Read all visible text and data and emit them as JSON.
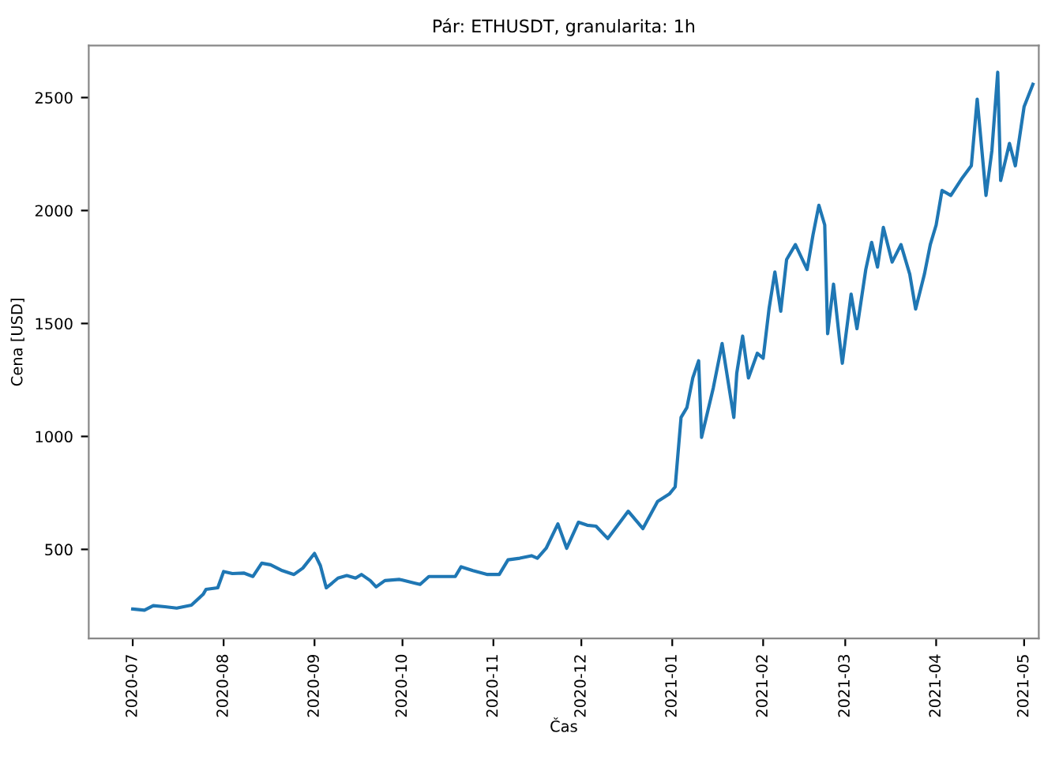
{
  "chart_data": {
    "type": "line",
    "title": "Pár: ETHUSDT, granularita: 1h",
    "xlabel": "Čas",
    "ylabel": "Cena [USD]",
    "x": [
      "2020-07-01",
      "2020-07-05",
      "2020-07-08",
      "2020-07-12",
      "2020-07-16",
      "2020-07-21",
      "2020-07-25",
      "2020-07-26",
      "2020-07-30",
      "2020-08-01",
      "2020-08-04",
      "2020-08-08",
      "2020-08-11",
      "2020-08-14",
      "2020-08-17",
      "2020-08-21",
      "2020-08-25",
      "2020-08-28",
      "2020-09-01",
      "2020-09-03",
      "2020-09-05",
      "2020-09-07",
      "2020-09-09",
      "2020-09-12",
      "2020-09-15",
      "2020-09-17",
      "2020-09-20",
      "2020-09-22",
      "2020-09-25",
      "2020-09-30",
      "2020-10-05",
      "2020-10-07",
      "2020-10-10",
      "2020-10-14",
      "2020-10-19",
      "2020-10-21",
      "2020-10-25",
      "2020-10-30",
      "2020-11-03",
      "2020-11-06",
      "2020-11-10",
      "2020-11-14",
      "2020-11-16",
      "2020-11-19",
      "2020-11-23",
      "2020-11-26",
      "2020-11-30",
      "2020-12-03",
      "2020-12-06",
      "2020-12-10",
      "2020-12-17",
      "2020-12-22",
      "2020-12-27",
      "2020-12-31",
      "2021-01-02",
      "2021-01-04",
      "2021-01-06",
      "2021-01-08",
      "2021-01-10",
      "2021-01-11",
      "2021-01-15",
      "2021-01-18",
      "2021-01-22",
      "2021-01-23",
      "2021-01-25",
      "2021-01-27",
      "2021-01-30",
      "2021-02-01",
      "2021-02-03",
      "2021-02-05",
      "2021-02-07",
      "2021-02-09",
      "2021-02-12",
      "2021-02-16",
      "2021-02-18",
      "2021-02-20",
      "2021-02-22",
      "2021-02-23",
      "2021-02-25",
      "2021-02-27",
      "2021-02-28",
      "2021-03-03",
      "2021-03-05",
      "2021-03-08",
      "2021-03-10",
      "2021-03-12",
      "2021-03-14",
      "2021-03-17",
      "2021-03-20",
      "2021-03-23",
      "2021-03-25",
      "2021-03-28",
      "2021-03-30",
      "2021-04-01",
      "2021-04-03",
      "2021-04-06",
      "2021-04-10",
      "2021-04-13",
      "2021-04-15",
      "2021-04-18",
      "2021-04-20",
      "2021-04-22",
      "2021-04-23",
      "2021-04-26",
      "2021-04-28",
      "2021-05-01",
      "2021-05-04"
    ],
    "series": [
      {
        "color": "#1f77b4",
        "values": [
          236,
          231,
          251,
          246,
          240,
          253,
          301,
          323,
          330,
          402,
          393,
          395,
          380,
          439,
          432,
          406,
          389,
          417,
          482,
          428,
          330,
          351,
          373,
          384,
          373,
          389,
          362,
          334,
          362,
          367,
          351,
          345,
          380,
          380,
          380,
          423,
          406,
          389,
          389,
          454,
          461,
          472,
          461,
          505,
          613,
          505,
          620,
          607,
          603,
          548,
          669,
          592,
          712,
          745,
          777,
          1084,
          1128,
          1259,
          1335,
          996,
          1215,
          1411,
          1084,
          1280,
          1444,
          1259,
          1368,
          1346,
          1564,
          1728,
          1554,
          1783,
          1849,
          1739,
          1892,
          2023,
          1936,
          1455,
          1674,
          1433,
          1324,
          1630,
          1477,
          1739,
          1859,
          1750,
          1925,
          1772,
          1849,
          1718,
          1564,
          1718,
          1849,
          1936,
          2089,
          2067,
          2146,
          2198,
          2493,
          2067,
          2264,
          2612,
          2133,
          2297,
          2198,
          2460,
          2559
        ]
      }
    ],
    "xlim": [
      "2020-06-16",
      "2021-05-06"
    ],
    "ylim": [
      106,
      2730
    ],
    "xticks": [
      {
        "value": "2020-07-01",
        "label": "2020-07"
      },
      {
        "value": "2020-08-01",
        "label": "2020-08"
      },
      {
        "value": "2020-09-01",
        "label": "2020-09"
      },
      {
        "value": "2020-10-01",
        "label": "2020-10"
      },
      {
        "value": "2020-11-01",
        "label": "2020-11"
      },
      {
        "value": "2020-12-01",
        "label": "2020-12"
      },
      {
        "value": "2021-01-01",
        "label": "2021-01"
      },
      {
        "value": "2021-02-01",
        "label": "2021-02"
      },
      {
        "value": "2021-03-01",
        "label": "2021-03"
      },
      {
        "value": "2021-04-01",
        "label": "2021-04"
      },
      {
        "value": "2021-05-01",
        "label": "2021-05"
      }
    ],
    "yticks": [
      500,
      1000,
      1500,
      2000,
      2500
    ],
    "grid": false,
    "marker": "none",
    "line_style": "solid"
  }
}
